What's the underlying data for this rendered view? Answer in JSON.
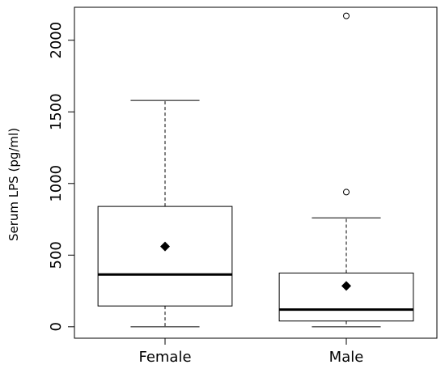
{
  "chart_data": {
    "type": "boxplot",
    "title": "",
    "xlabel": "",
    "ylabel": "Serum LPS (pg/ml)",
    "ylim": [
      -80,
      2230
    ],
    "yticks": [
      0,
      500,
      1000,
      1500,
      2000
    ],
    "grid": false,
    "categories": [
      "Female",
      "Male"
    ],
    "boxes": [
      {
        "category": "Female",
        "min": 0,
        "q1": 145,
        "median": 365,
        "q3": 840,
        "max": 1580,
        "mean": 560,
        "outliers": []
      },
      {
        "category": "Male",
        "min": 0,
        "q1": 40,
        "median": 120,
        "q3": 375,
        "max": 760,
        "mean": 285,
        "outliers": [
          940,
          2170
        ]
      }
    ]
  }
}
